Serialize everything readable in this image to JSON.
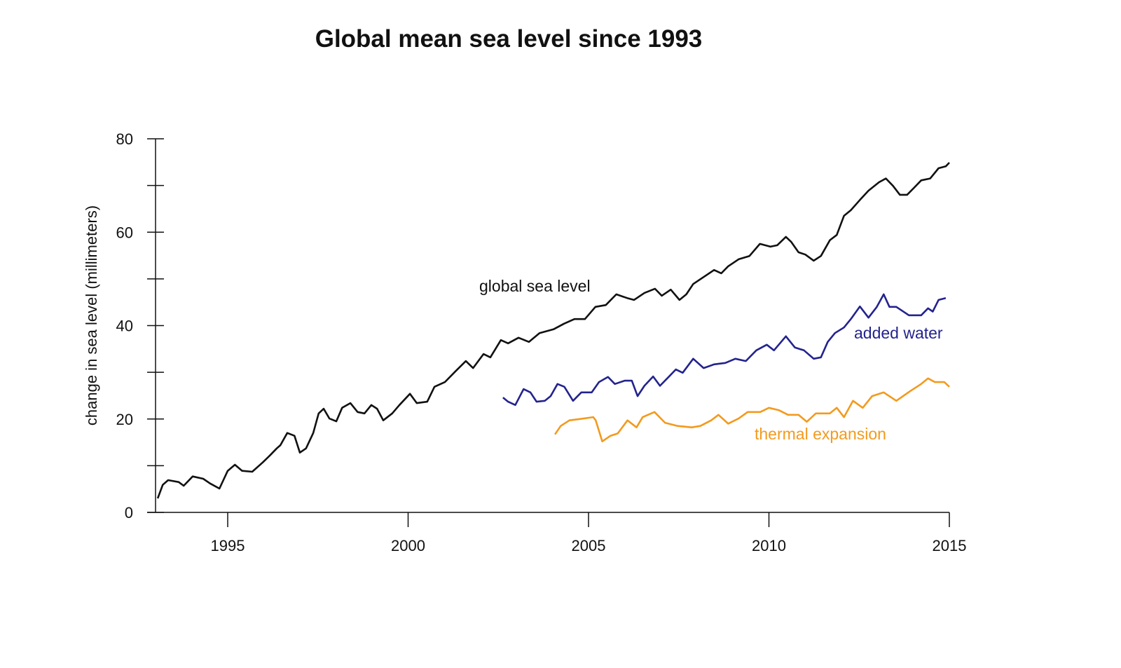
{
  "chart_data": {
    "type": "line",
    "title": "Global mean sea level since 1993",
    "xlabel": "",
    "ylabel": "change in sea level (millimeters)",
    "xlim": [
      1993,
      2015
    ],
    "ylim": [
      0,
      80
    ],
    "x_ticks": [
      1995,
      2000,
      2005,
      2010,
      2015
    ],
    "y_ticks": [
      0,
      20,
      40,
      60,
      80
    ],
    "y_minor_ticks": [
      10,
      30,
      50,
      70
    ],
    "grid": false,
    "legend": "inline labels",
    "series": [
      {
        "name": "global sea level",
        "color": "#111111",
        "points": [
          [
            1993.06,
            3.0
          ],
          [
            1993.2,
            5.9
          ],
          [
            1993.35,
            6.9
          ],
          [
            1993.64,
            6.5
          ],
          [
            1993.78,
            5.7
          ],
          [
            1994.03,
            7.7
          ],
          [
            1994.32,
            7.2
          ],
          [
            1994.51,
            6.2
          ],
          [
            1994.77,
            5.1
          ],
          [
            1995.0,
            8.9
          ],
          [
            1995.2,
            10.2
          ],
          [
            1995.4,
            8.9
          ],
          [
            1995.68,
            8.7
          ],
          [
            1995.97,
            10.7
          ],
          [
            1996.17,
            12.2
          ],
          [
            1996.36,
            13.7
          ],
          [
            1996.46,
            14.4
          ],
          [
            1996.65,
            17.0
          ],
          [
            1996.85,
            16.4
          ],
          [
            1997.0,
            12.8
          ],
          [
            1997.17,
            13.7
          ],
          [
            1997.37,
            17.0
          ],
          [
            1997.52,
            21.2
          ],
          [
            1997.66,
            22.2
          ],
          [
            1997.82,
            20.1
          ],
          [
            1998.01,
            19.5
          ],
          [
            1998.17,
            22.4
          ],
          [
            1998.4,
            23.4
          ],
          [
            1998.6,
            21.5
          ],
          [
            1998.79,
            21.2
          ],
          [
            1998.98,
            23.0
          ],
          [
            1999.14,
            22.2
          ],
          [
            1999.31,
            19.7
          ],
          [
            1999.56,
            21.2
          ],
          [
            1999.76,
            23.0
          ],
          [
            2000.05,
            25.4
          ],
          [
            2000.24,
            23.4
          ],
          [
            2000.53,
            23.7
          ],
          [
            2000.73,
            26.9
          ],
          [
            2001.02,
            27.9
          ],
          [
            2001.31,
            30.2
          ],
          [
            2001.6,
            32.4
          ],
          [
            2001.8,
            30.9
          ],
          [
            2002.09,
            33.9
          ],
          [
            2002.28,
            33.2
          ],
          [
            2002.57,
            36.9
          ],
          [
            2002.77,
            36.2
          ],
          [
            2003.06,
            37.4
          ],
          [
            2003.35,
            36.5
          ],
          [
            2003.64,
            38.4
          ],
          [
            2004.03,
            39.2
          ],
          [
            2004.32,
            40.4
          ],
          [
            2004.61,
            41.4
          ],
          [
            2004.9,
            41.4
          ],
          [
            2005.19,
            44.0
          ],
          [
            2005.48,
            44.4
          ],
          [
            2005.77,
            46.7
          ],
          [
            2006.07,
            45.9
          ],
          [
            2006.26,
            45.5
          ],
          [
            2006.55,
            47.0
          ],
          [
            2006.84,
            47.9
          ],
          [
            2007.03,
            46.4
          ],
          [
            2007.28,
            47.7
          ],
          [
            2007.52,
            45.5
          ],
          [
            2007.71,
            46.7
          ],
          [
            2007.9,
            48.9
          ],
          [
            2008.19,
            50.4
          ],
          [
            2008.48,
            51.9
          ],
          [
            2008.68,
            51.2
          ],
          [
            2008.87,
            52.7
          ],
          [
            2009.16,
            54.2
          ],
          [
            2009.46,
            54.9
          ],
          [
            2009.75,
            57.5
          ],
          [
            2010.04,
            56.9
          ],
          [
            2010.23,
            57.2
          ],
          [
            2010.47,
            59.0
          ],
          [
            2010.62,
            57.9
          ],
          [
            2010.82,
            55.7
          ],
          [
            2011.01,
            55.2
          ],
          [
            2011.24,
            53.9
          ],
          [
            2011.44,
            54.9
          ],
          [
            2011.69,
            58.3
          ],
          [
            2011.88,
            59.4
          ],
          [
            2012.08,
            63.5
          ],
          [
            2012.27,
            64.7
          ],
          [
            2012.52,
            66.9
          ],
          [
            2012.76,
            68.9
          ],
          [
            2013.05,
            70.7
          ],
          [
            2013.24,
            71.5
          ],
          [
            2013.44,
            69.9
          ],
          [
            2013.63,
            68.0
          ],
          [
            2013.83,
            68.0
          ],
          [
            2014.02,
            69.5
          ],
          [
            2014.22,
            71.1
          ],
          [
            2014.47,
            71.5
          ],
          [
            2014.7,
            73.7
          ],
          [
            2014.9,
            74.1
          ],
          [
            2015.0,
            74.9
          ]
        ]
      },
      {
        "name": "added water",
        "color": "#23238e",
        "points": [
          [
            2002.63,
            24.6
          ],
          [
            2002.77,
            23.7
          ],
          [
            2002.97,
            23.0
          ],
          [
            2003.2,
            26.4
          ],
          [
            2003.39,
            25.7
          ],
          [
            2003.56,
            23.7
          ],
          [
            2003.79,
            23.9
          ],
          [
            2003.95,
            24.9
          ],
          [
            2004.14,
            27.5
          ],
          [
            2004.33,
            26.9
          ],
          [
            2004.57,
            23.9
          ],
          [
            2004.8,
            25.7
          ],
          [
            2005.09,
            25.7
          ],
          [
            2005.29,
            27.9
          ],
          [
            2005.54,
            29.0
          ],
          [
            2005.73,
            27.5
          ],
          [
            2006.0,
            28.2
          ],
          [
            2006.2,
            28.2
          ],
          [
            2006.36,
            24.9
          ],
          [
            2006.55,
            27.1
          ],
          [
            2006.79,
            29.1
          ],
          [
            2006.98,
            27.1
          ],
          [
            2007.22,
            29.0
          ],
          [
            2007.42,
            30.6
          ],
          [
            2007.61,
            29.9
          ],
          [
            2007.9,
            32.9
          ],
          [
            2008.19,
            30.9
          ],
          [
            2008.48,
            31.7
          ],
          [
            2008.79,
            32.0
          ],
          [
            2009.07,
            32.9
          ],
          [
            2009.36,
            32.4
          ],
          [
            2009.65,
            34.7
          ],
          [
            2009.94,
            35.9
          ],
          [
            2010.14,
            34.7
          ],
          [
            2010.47,
            37.7
          ],
          [
            2010.72,
            35.3
          ],
          [
            2010.97,
            34.7
          ],
          [
            2011.24,
            32.9
          ],
          [
            2011.44,
            33.2
          ],
          [
            2011.63,
            36.5
          ],
          [
            2011.83,
            38.4
          ],
          [
            2012.08,
            39.6
          ],
          [
            2012.27,
            41.4
          ],
          [
            2012.52,
            44.1
          ],
          [
            2012.76,
            41.7
          ],
          [
            2012.99,
            44.0
          ],
          [
            2013.18,
            46.7
          ],
          [
            2013.34,
            44.0
          ],
          [
            2013.53,
            44.0
          ],
          [
            2013.88,
            42.2
          ],
          [
            2014.22,
            42.2
          ],
          [
            2014.41,
            43.7
          ],
          [
            2014.54,
            43.0
          ],
          [
            2014.7,
            45.5
          ],
          [
            2014.9,
            45.9
          ]
        ]
      },
      {
        "name": "thermal expansion",
        "color": "#f39a1e",
        "points": [
          [
            2004.07,
            16.7
          ],
          [
            2004.23,
            18.5
          ],
          [
            2004.47,
            19.7
          ],
          [
            2004.76,
            20.0
          ],
          [
            2005.13,
            20.4
          ],
          [
            2005.2,
            19.7
          ],
          [
            2005.38,
            15.2
          ],
          [
            2005.61,
            16.4
          ],
          [
            2005.81,
            16.9
          ],
          [
            2006.08,
            19.7
          ],
          [
            2006.33,
            18.2
          ],
          [
            2006.5,
            20.4
          ],
          [
            2006.83,
            21.5
          ],
          [
            2007.12,
            19.2
          ],
          [
            2007.47,
            18.5
          ],
          [
            2007.86,
            18.2
          ],
          [
            2008.1,
            18.5
          ],
          [
            2008.4,
            19.7
          ],
          [
            2008.6,
            20.9
          ],
          [
            2008.87,
            19.0
          ],
          [
            2009.16,
            20.1
          ],
          [
            2009.41,
            21.5
          ],
          [
            2009.76,
            21.5
          ],
          [
            2010.0,
            22.4
          ],
          [
            2010.27,
            21.9
          ],
          [
            2010.53,
            20.9
          ],
          [
            2010.82,
            20.9
          ],
          [
            2011.05,
            19.4
          ],
          [
            2011.3,
            21.2
          ],
          [
            2011.69,
            21.2
          ],
          [
            2011.88,
            22.4
          ],
          [
            2012.08,
            20.4
          ],
          [
            2012.33,
            23.9
          ],
          [
            2012.6,
            22.4
          ],
          [
            2012.86,
            24.9
          ],
          [
            2013.18,
            25.7
          ],
          [
            2013.53,
            23.9
          ],
          [
            2013.92,
            26.0
          ],
          [
            2014.22,
            27.5
          ],
          [
            2014.41,
            28.7
          ],
          [
            2014.6,
            27.9
          ],
          [
            2014.86,
            27.9
          ],
          [
            2015.0,
            26.9
          ]
        ]
      }
    ]
  }
}
